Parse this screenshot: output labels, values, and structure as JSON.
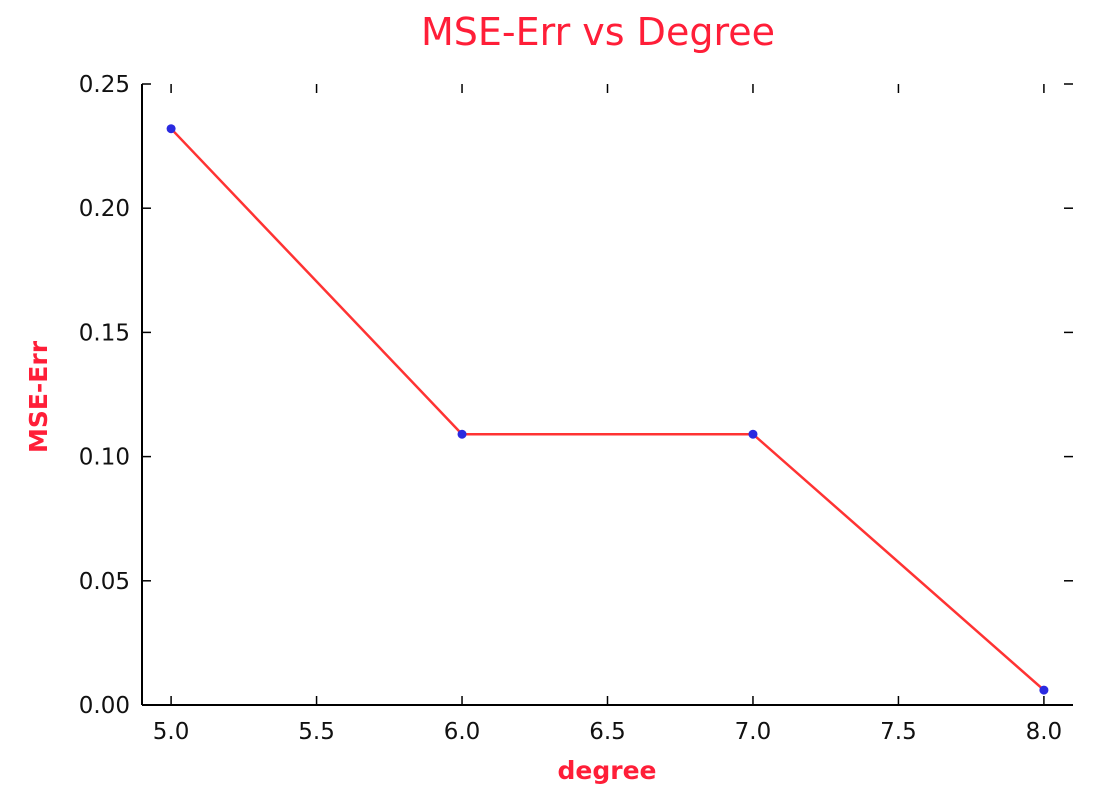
{
  "chart_data": {
    "type": "line",
    "title": "MSE-Err vs Degree",
    "xlabel": "degree",
    "ylabel": "MSE-Err",
    "xlim": [
      4.9,
      8.1
    ],
    "ylim": [
      0.0,
      0.25
    ],
    "x_ticks": [
      "5.0",
      "5.5",
      "6.0",
      "6.5",
      "7.0",
      "7.5",
      "8.0"
    ],
    "y_ticks": [
      "0.00",
      "0.05",
      "0.10",
      "0.15",
      "0.20",
      "0.25"
    ],
    "grid": false,
    "series": [
      {
        "x": [
          5.0,
          6.0,
          7.0,
          8.0
        ],
        "y": [
          0.232,
          0.109,
          0.109,
          0.006
        ],
        "line_color": "#ff3333",
        "marker_color": "#2a2ae0"
      }
    ]
  }
}
